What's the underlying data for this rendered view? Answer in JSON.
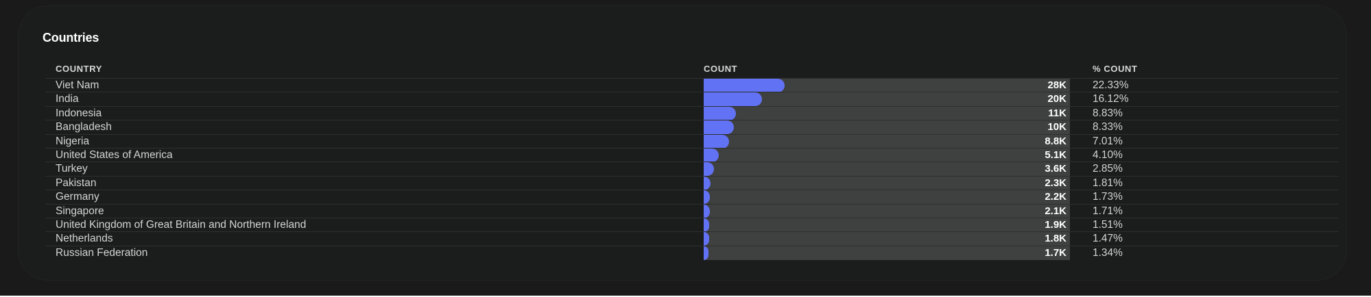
{
  "panel": {
    "title": "Countries"
  },
  "table": {
    "headers": {
      "country": "COUNTRY",
      "count": "COUNT",
      "pct": "% COUNT"
    },
    "rows": [
      {
        "country": "Viet Nam",
        "count": "28K",
        "pct": "22.33%",
        "share": 0.2233
      },
      {
        "country": "India",
        "count": "20K",
        "pct": "16.12%",
        "share": 0.1612
      },
      {
        "country": "Indonesia",
        "count": "11K",
        "pct": "8.83%",
        "share": 0.0883
      },
      {
        "country": "Bangladesh",
        "count": "10K",
        "pct": "8.33%",
        "share": 0.0833
      },
      {
        "country": "Nigeria",
        "count": "8.8K",
        "pct": "7.01%",
        "share": 0.0701
      },
      {
        "country": "United States of America",
        "count": "5.1K",
        "pct": "4.10%",
        "share": 0.041
      },
      {
        "country": "Turkey",
        "count": "3.6K",
        "pct": "2.85%",
        "share": 0.0285
      },
      {
        "country": "Pakistan",
        "count": "2.3K",
        "pct": "1.81%",
        "share": 0.0181
      },
      {
        "country": "Germany",
        "count": "2.2K",
        "pct": "1.73%",
        "share": 0.0173
      },
      {
        "country": "Singapore",
        "count": "2.1K",
        "pct": "1.71%",
        "share": 0.0171
      },
      {
        "country": "United Kingdom of Great Britain and Northern Ireland",
        "count": "1.9K",
        "pct": "1.51%",
        "share": 0.0151
      },
      {
        "country": "Netherlands",
        "count": "1.8K",
        "pct": "1.47%",
        "share": 0.0147
      },
      {
        "country": "Russian Federation",
        "count": "1.7K",
        "pct": "1.34%",
        "share": 0.0134
      }
    ]
  },
  "colors": {
    "bar": "#6272f5",
    "track": "#3f4040",
    "background": "#1b1c1c"
  }
}
